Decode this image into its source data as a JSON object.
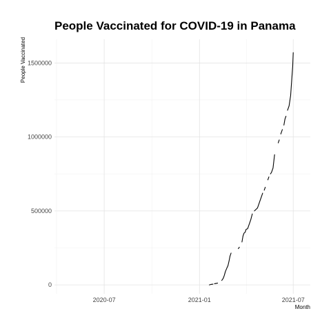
{
  "chart_data": {
    "type": "line",
    "title": "People Vaccinated for COVID-19 in Panama",
    "xlabel": "Month",
    "ylabel": "People Vaccinated",
    "xlim": [
      "2020-03-27",
      "2021-08-03"
    ],
    "ylim": [
      -60000,
      1660000
    ],
    "x_ticks": [
      {
        "date": "2020-07-01",
        "label": "2020-07"
      },
      {
        "date": "2021-01-01",
        "label": "2021-01"
      },
      {
        "date": "2021-07-01",
        "label": "2021-07"
      }
    ],
    "y_ticks": [
      {
        "value": 0,
        "label": "0"
      },
      {
        "value": 500000,
        "label": "500000"
      },
      {
        "value": 1000000,
        "label": "1000000"
      },
      {
        "value": 1500000,
        "label": "1500000"
      }
    ],
    "grid": true,
    "legend": "none",
    "series": [
      {
        "segments": [
          [
            [
              "2021-01-20",
              0
            ],
            [
              "2021-01-23",
              3000
            ],
            [
              "2021-01-27",
              5000
            ]
          ],
          [
            [
              "2021-01-30",
              8000
            ],
            [
              "2021-02-05",
              12000
            ]
          ],
          [
            [
              "2021-02-13",
              30000
            ],
            [
              "2021-02-16",
              45000
            ],
            [
              "2021-02-18",
              65000
            ],
            [
              "2021-02-20",
              90000
            ],
            [
              "2021-02-23",
              115000
            ],
            [
              "2021-02-25",
              130000
            ],
            [
              "2021-02-27",
              160000
            ],
            [
              "2021-03-01",
              195000
            ],
            [
              "2021-03-03",
              215000
            ]
          ],
          [
            [
              "2021-03-17",
              245000
            ],
            [
              "2021-03-19",
              255000
            ]
          ],
          [
            [
              "2021-03-24",
              290000
            ],
            [
              "2021-03-26",
              330000
            ],
            [
              "2021-03-28",
              350000
            ],
            [
              "2021-03-30",
              355000
            ],
            [
              "2021-04-01",
              375000
            ],
            [
              "2021-04-04",
              380000
            ],
            [
              "2021-04-07",
              410000
            ],
            [
              "2021-04-10",
              440000
            ],
            [
              "2021-04-13",
              480000
            ]
          ],
          [
            [
              "2021-04-17",
              500000
            ],
            [
              "2021-04-20",
              510000
            ],
            [
              "2021-04-23",
              520000
            ],
            [
              "2021-04-25",
              540000
            ],
            [
              "2021-04-28",
              570000
            ],
            [
              "2021-05-01",
              600000
            ],
            [
              "2021-05-03",
              620000
            ]
          ],
          [
            [
              "2021-05-06",
              640000
            ],
            [
              "2021-05-08",
              660000
            ]
          ],
          [
            [
              "2021-05-13",
              710000
            ],
            [
              "2021-05-15",
              730000
            ]
          ],
          [
            [
              "2021-05-18",
              750000
            ],
            [
              "2021-05-20",
              760000
            ],
            [
              "2021-05-23",
              790000
            ],
            [
              "2021-05-26",
              880000
            ]
          ],
          [
            [
              "2021-06-02",
              960000
            ],
            [
              "2021-06-04",
              980000
            ]
          ],
          [
            [
              "2021-06-07",
              1020000
            ],
            [
              "2021-06-10",
              1050000
            ]
          ],
          [
            [
              "2021-06-13",
              1080000
            ],
            [
              "2021-06-15",
              1120000
            ],
            [
              "2021-06-17",
              1140000
            ]
          ],
          [
            [
              "2021-06-20",
              1180000
            ],
            [
              "2021-06-23",
              1210000
            ],
            [
              "2021-06-26",
              1280000
            ],
            [
              "2021-06-28",
              1380000
            ],
            [
              "2021-06-30",
              1480000
            ],
            [
              "2021-07-01",
              1570000
            ]
          ]
        ]
      }
    ]
  }
}
